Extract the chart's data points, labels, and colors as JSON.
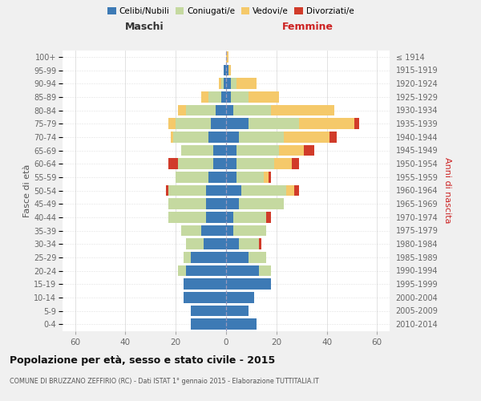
{
  "age_groups": [
    "0-4",
    "5-9",
    "10-14",
    "15-19",
    "20-24",
    "25-29",
    "30-34",
    "35-39",
    "40-44",
    "45-49",
    "50-54",
    "55-59",
    "60-64",
    "65-69",
    "70-74",
    "75-79",
    "80-84",
    "85-89",
    "90-94",
    "95-99",
    "100+"
  ],
  "birth_years": [
    "2010-2014",
    "2005-2009",
    "2000-2004",
    "1995-1999",
    "1990-1994",
    "1985-1989",
    "1980-1984",
    "1975-1979",
    "1970-1974",
    "1965-1969",
    "1960-1964",
    "1955-1959",
    "1950-1954",
    "1945-1949",
    "1940-1944",
    "1935-1939",
    "1930-1934",
    "1925-1929",
    "1920-1924",
    "1915-1919",
    "≤ 1914"
  ],
  "males": {
    "celibe": [
      14,
      14,
      17,
      17,
      16,
      14,
      9,
      10,
      8,
      8,
      8,
      7,
      5,
      5,
      7,
      6,
      4,
      2,
      1,
      1,
      0
    ],
    "coniugato": [
      0,
      0,
      0,
      0,
      3,
      3,
      7,
      8,
      15,
      15,
      15,
      13,
      14,
      13,
      14,
      14,
      12,
      5,
      1,
      0,
      0
    ],
    "vedovo": [
      0,
      0,
      0,
      0,
      0,
      0,
      0,
      0,
      0,
      0,
      0,
      0,
      0,
      0,
      1,
      3,
      3,
      3,
      1,
      0,
      0
    ],
    "divorziato": [
      0,
      0,
      0,
      0,
      0,
      0,
      0,
      0,
      0,
      0,
      1,
      0,
      4,
      0,
      0,
      0,
      0,
      0,
      0,
      0,
      0
    ]
  },
  "females": {
    "nubile": [
      12,
      9,
      11,
      18,
      13,
      9,
      5,
      3,
      3,
      5,
      6,
      4,
      4,
      4,
      5,
      9,
      3,
      2,
      2,
      1,
      0
    ],
    "coniugata": [
      0,
      0,
      0,
      0,
      5,
      7,
      8,
      13,
      13,
      18,
      18,
      11,
      15,
      17,
      18,
      20,
      15,
      7,
      2,
      0,
      0
    ],
    "vedova": [
      0,
      0,
      0,
      0,
      0,
      0,
      0,
      0,
      0,
      0,
      3,
      2,
      7,
      10,
      18,
      22,
      25,
      12,
      8,
      1,
      1
    ],
    "divorziata": [
      0,
      0,
      0,
      0,
      0,
      0,
      1,
      0,
      2,
      0,
      2,
      1,
      3,
      4,
      3,
      2,
      0,
      0,
      0,
      0,
      0
    ]
  },
  "colors": {
    "celibe": "#3d7ab5",
    "coniugato": "#c5d9a0",
    "vedovo": "#f5c96a",
    "divorziato": "#d13b2a"
  },
  "xlim": 65,
  "title": "Popolazione per età, sesso e stato civile - 2015",
  "subtitle": "COMUNE DI BRUZZANO ZEFFIRIO (RC) - Dati ISTAT 1° gennaio 2015 - Elaborazione TUTTITALIA.IT",
  "xlabel_left": "Maschi",
  "xlabel_right": "Femmine",
  "ylabel_left": "Fasce di età",
  "ylabel_right": "Anni di nascita",
  "bg_color": "#f0f0f0",
  "plot_bg": "#ffffff",
  "legend_labels": [
    "Celibi/Nubili",
    "Coniugati/e",
    "Vedovi/e",
    "Divorziati/e"
  ]
}
